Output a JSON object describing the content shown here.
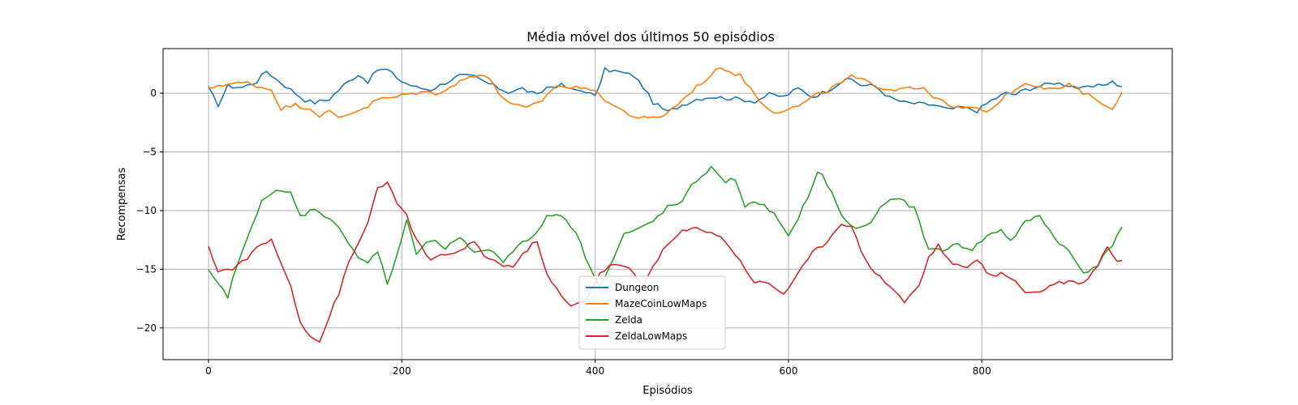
{
  "chart_data": {
    "type": "line",
    "title": "Média móvel dos últimos 50 episódios",
    "xlabel": "Episódios",
    "ylabel": "Recompensas",
    "xlim": [
      -47,
      997
    ],
    "ylim": [
      -22.7,
      3.8
    ],
    "x_ticks": [
      0,
      200,
      400,
      600,
      800
    ],
    "y_ticks": [
      0,
      -5,
      -10,
      -15,
      -20
    ],
    "grid": true,
    "legend_position": "lower-center",
    "x_step": 5,
    "series": [
      {
        "name": "Dungeon",
        "color": "#1f77b4",
        "keypoints": [
          [
            0,
            0.4
          ],
          [
            10,
            -1.0
          ],
          [
            20,
            0.6
          ],
          [
            35,
            0.5
          ],
          [
            50,
            1.0
          ],
          [
            60,
            1.9
          ],
          [
            70,
            1.2
          ],
          [
            80,
            0.6
          ],
          [
            100,
            -0.6
          ],
          [
            110,
            -0.8
          ],
          [
            125,
            -0.5
          ],
          [
            140,
            0.7
          ],
          [
            155,
            1.6
          ],
          [
            165,
            1.0
          ],
          [
            175,
            2.0
          ],
          [
            185,
            2.0
          ],
          [
            200,
            1.0
          ],
          [
            215,
            0.5
          ],
          [
            230,
            0.3
          ],
          [
            245,
            0.9
          ],
          [
            260,
            1.5
          ],
          [
            275,
            1.4
          ],
          [
            290,
            0.8
          ],
          [
            310,
            0.1
          ],
          [
            325,
            0.4
          ],
          [
            340,
            -0.2
          ],
          [
            350,
            0.5
          ],
          [
            365,
            0.7
          ],
          [
            375,
            0.3
          ],
          [
            390,
            0.2
          ],
          [
            400,
            -0.3
          ],
          [
            410,
            2.0
          ],
          [
            420,
            1.9
          ],
          [
            440,
            1.5
          ],
          [
            450,
            0.5
          ],
          [
            460,
            -0.8
          ],
          [
            475,
            -1.6
          ],
          [
            490,
            -1.0
          ],
          [
            505,
            -0.5
          ],
          [
            520,
            -0.3
          ],
          [
            535,
            -0.4
          ],
          [
            550,
            -0.5
          ],
          [
            565,
            -0.7
          ],
          [
            580,
            -0.1
          ],
          [
            595,
            -0.3
          ],
          [
            610,
            0.4
          ],
          [
            625,
            -0.3
          ],
          [
            640,
            0.2
          ],
          [
            655,
            1.0
          ],
          [
            665,
            1.2
          ],
          [
            675,
            0.7
          ],
          [
            690,
            0.6
          ],
          [
            705,
            -0.4
          ],
          [
            720,
            -0.8
          ],
          [
            735,
            -0.9
          ],
          [
            750,
            -1.0
          ],
          [
            765,
            -1.4
          ],
          [
            780,
            -1.2
          ],
          [
            795,
            -1.5
          ],
          [
            810,
            -0.6
          ],
          [
            825,
            0.0
          ],
          [
            835,
            -0.1
          ],
          [
            845,
            0.3
          ],
          [
            860,
            0.6
          ],
          [
            875,
            0.9
          ],
          [
            890,
            0.7
          ],
          [
            905,
            0.4
          ],
          [
            920,
            0.6
          ],
          [
            935,
            1.0
          ],
          [
            945,
            0.5
          ]
        ]
      },
      {
        "name": "MazeCoinLowMaps",
        "color": "#ff7f0e",
        "keypoints": [
          [
            0,
            0.3
          ],
          [
            10,
            0.7
          ],
          [
            25,
            0.8
          ],
          [
            40,
            0.9
          ],
          [
            55,
            0.5
          ],
          [
            65,
            0.3
          ],
          [
            75,
            -1.3
          ],
          [
            90,
            -1.0
          ],
          [
            105,
            -1.3
          ],
          [
            115,
            -1.9
          ],
          [
            125,
            -1.6
          ],
          [
            135,
            -2.1
          ],
          [
            150,
            -1.6
          ],
          [
            165,
            -1.1
          ],
          [
            175,
            -0.5
          ],
          [
            190,
            -0.4
          ],
          [
            205,
            -0.1
          ],
          [
            220,
            0.1
          ],
          [
            235,
            0.0
          ],
          [
            250,
            0.5
          ],
          [
            265,
            1.2
          ],
          [
            280,
            1.7
          ],
          [
            290,
            1.3
          ],
          [
            300,
            0.0
          ],
          [
            315,
            -1.0
          ],
          [
            330,
            -1.3
          ],
          [
            345,
            -0.6
          ],
          [
            360,
            0.7
          ],
          [
            375,
            0.4
          ],
          [
            390,
            0.6
          ],
          [
            405,
            -0.2
          ],
          [
            420,
            -1.1
          ],
          [
            440,
            -2.0
          ],
          [
            455,
            -2.2
          ],
          [
            470,
            -1.9
          ],
          [
            480,
            -1.3
          ],
          [
            490,
            -0.6
          ],
          [
            500,
            0.2
          ],
          [
            510,
            0.9
          ],
          [
            520,
            1.5
          ],
          [
            530,
            2.3
          ],
          [
            540,
            1.8
          ],
          [
            550,
            1.5
          ],
          [
            560,
            0.5
          ],
          [
            570,
            -0.6
          ],
          [
            585,
            -1.6
          ],
          [
            600,
            -1.4
          ],
          [
            615,
            -0.9
          ],
          [
            630,
            -0.1
          ],
          [
            640,
            0.2
          ],
          [
            655,
            0.9
          ],
          [
            665,
            1.4
          ],
          [
            680,
            1.0
          ],
          [
            695,
            0.5
          ],
          [
            710,
            0.3
          ],
          [
            725,
            0.6
          ],
          [
            740,
            0.3
          ],
          [
            755,
            -0.5
          ],
          [
            770,
            -1.3
          ],
          [
            785,
            -1.2
          ],
          [
            800,
            -1.5
          ],
          [
            810,
            -1.4
          ],
          [
            820,
            -0.5
          ],
          [
            830,
            0.1
          ],
          [
            845,
            0.9
          ],
          [
            860,
            0.6
          ],
          [
            875,
            0.3
          ],
          [
            890,
            0.7
          ],
          [
            905,
            0.0
          ],
          [
            920,
            -0.5
          ],
          [
            935,
            -1.5
          ],
          [
            945,
            0.1
          ]
        ]
      },
      {
        "name": "Zelda",
        "color": "#2ca02c",
        "keypoints": [
          [
            0,
            -15.2
          ],
          [
            10,
            -16.3
          ],
          [
            20,
            -17.3
          ],
          [
            30,
            -14.5
          ],
          [
            40,
            -12.5
          ],
          [
            55,
            -9.0
          ],
          [
            70,
            -8.4
          ],
          [
            85,
            -8.5
          ],
          [
            95,
            -10.5
          ],
          [
            110,
            -9.8
          ],
          [
            125,
            -10.7
          ],
          [
            140,
            -12.0
          ],
          [
            155,
            -14.0
          ],
          [
            165,
            -14.4
          ],
          [
            175,
            -13.5
          ],
          [
            185,
            -16.3
          ],
          [
            195,
            -13.8
          ],
          [
            205,
            -10.8
          ],
          [
            215,
            -13.7
          ],
          [
            230,
            -12.5
          ],
          [
            245,
            -13.2
          ],
          [
            260,
            -12.4
          ],
          [
            275,
            -13.5
          ],
          [
            290,
            -13.3
          ],
          [
            305,
            -14.3
          ],
          [
            320,
            -12.9
          ],
          [
            335,
            -12.4
          ],
          [
            350,
            -10.5
          ],
          [
            365,
            -10.3
          ],
          [
            380,
            -11.8
          ],
          [
            395,
            -15.0
          ],
          [
            405,
            -16.3
          ],
          [
            415,
            -14.8
          ],
          [
            430,
            -12.0
          ],
          [
            445,
            -11.6
          ],
          [
            460,
            -10.9
          ],
          [
            475,
            -9.7
          ],
          [
            490,
            -9.3
          ],
          [
            500,
            -7.9
          ],
          [
            510,
            -7.0
          ],
          [
            520,
            -6.4
          ],
          [
            535,
            -7.5
          ],
          [
            545,
            -7.3
          ],
          [
            555,
            -9.6
          ],
          [
            570,
            -9.3
          ],
          [
            585,
            -10.3
          ],
          [
            600,
            -12.3
          ],
          [
            610,
            -10.6
          ],
          [
            620,
            -8.8
          ],
          [
            632,
            -6.5
          ],
          [
            645,
            -8.5
          ],
          [
            655,
            -10.5
          ],
          [
            670,
            -11.6
          ],
          [
            685,
            -11.0
          ],
          [
            700,
            -9.3
          ],
          [
            715,
            -9.0
          ],
          [
            730,
            -9.8
          ],
          [
            745,
            -13.3
          ],
          [
            760,
            -13.3
          ],
          [
            775,
            -12.9
          ],
          [
            790,
            -13.3
          ],
          [
            805,
            -12.2
          ],
          [
            820,
            -11.6
          ],
          [
            830,
            -12.6
          ],
          [
            845,
            -11.0
          ],
          [
            860,
            -10.4
          ],
          [
            875,
            -12.3
          ],
          [
            890,
            -13.5
          ],
          [
            905,
            -15.3
          ],
          [
            920,
            -14.6
          ],
          [
            935,
            -12.9
          ],
          [
            945,
            -11.3
          ]
        ]
      },
      {
        "name": "ZeldaLowMaps",
        "color": "#d62728",
        "keypoints": [
          [
            0,
            -13.2
          ],
          [
            10,
            -15.1
          ],
          [
            25,
            -15.0
          ],
          [
            40,
            -14.0
          ],
          [
            55,
            -12.9
          ],
          [
            65,
            -12.5
          ],
          [
            75,
            -14.5
          ],
          [
            85,
            -16.3
          ],
          [
            95,
            -19.5
          ],
          [
            105,
            -20.6
          ],
          [
            115,
            -21.2
          ],
          [
            125,
            -19.0
          ],
          [
            135,
            -17.0
          ],
          [
            145,
            -14.5
          ],
          [
            155,
            -12.8
          ],
          [
            165,
            -11.0
          ],
          [
            175,
            -8.0
          ],
          [
            185,
            -7.6
          ],
          [
            195,
            -9.5
          ],
          [
            205,
            -10.4
          ],
          [
            215,
            -12.5
          ],
          [
            230,
            -14.3
          ],
          [
            245,
            -13.7
          ],
          [
            260,
            -13.5
          ],
          [
            275,
            -12.7
          ],
          [
            285,
            -13.8
          ],
          [
            300,
            -14.5
          ],
          [
            315,
            -14.8
          ],
          [
            330,
            -13.3
          ],
          [
            340,
            -12.5
          ],
          [
            350,
            -15.5
          ],
          [
            365,
            -17.3
          ],
          [
            375,
            -18.2
          ],
          [
            390,
            -17.6
          ],
          [
            405,
            -15.3
          ],
          [
            420,
            -14.5
          ],
          [
            435,
            -15.0
          ],
          [
            450,
            -16.4
          ],
          [
            460,
            -14.6
          ],
          [
            475,
            -12.9
          ],
          [
            490,
            -11.8
          ],
          [
            505,
            -11.5
          ],
          [
            520,
            -11.8
          ],
          [
            535,
            -12.6
          ],
          [
            550,
            -14.3
          ],
          [
            565,
            -16.1
          ],
          [
            580,
            -16.2
          ],
          [
            595,
            -17.1
          ],
          [
            610,
            -15.4
          ],
          [
            625,
            -13.6
          ],
          [
            640,
            -12.6
          ],
          [
            655,
            -11.0
          ],
          [
            665,
            -11.4
          ],
          [
            680,
            -14.3
          ],
          [
            695,
            -15.7
          ],
          [
            710,
            -16.8
          ],
          [
            720,
            -17.8
          ],
          [
            735,
            -16.4
          ],
          [
            745,
            -14.0
          ],
          [
            755,
            -12.9
          ],
          [
            765,
            -14.2
          ],
          [
            780,
            -14.9
          ],
          [
            795,
            -14.3
          ],
          [
            810,
            -15.6
          ],
          [
            820,
            -15.4
          ],
          [
            835,
            -15.9
          ],
          [
            845,
            -17.0
          ],
          [
            860,
            -16.9
          ],
          [
            875,
            -16.2
          ],
          [
            890,
            -16.0
          ],
          [
            905,
            -16.2
          ],
          [
            920,
            -14.6
          ],
          [
            930,
            -13.0
          ],
          [
            940,
            -14.4
          ],
          [
            945,
            -14.1
          ]
        ]
      }
    ]
  }
}
